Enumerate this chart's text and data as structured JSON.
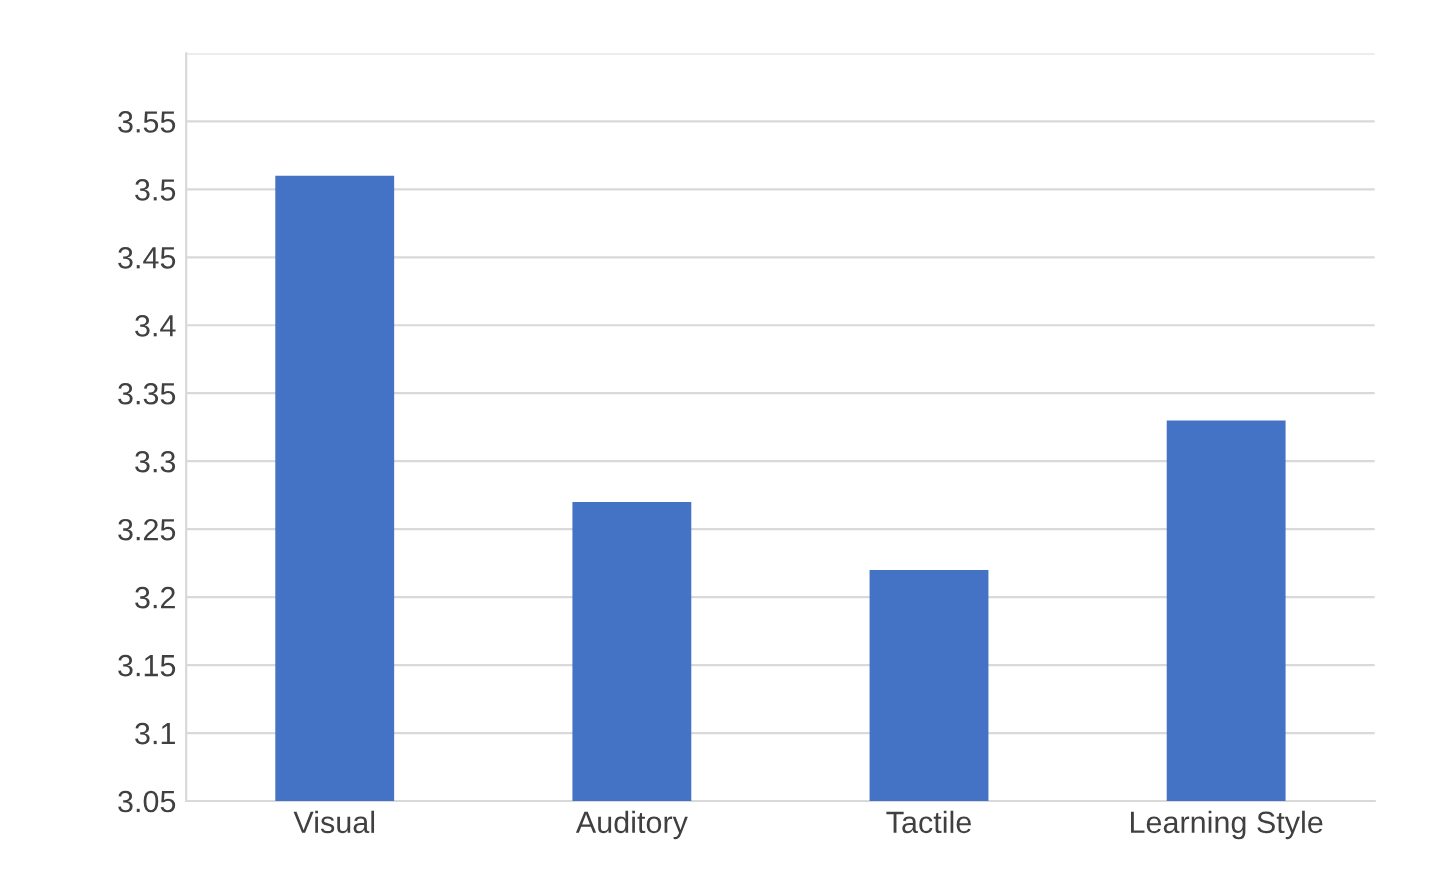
{
  "chart_data": {
    "type": "bar",
    "categories": [
      "Visual",
      "Auditory",
      "Tactile",
      "Learning Style"
    ],
    "values": [
      3.51,
      3.27,
      3.22,
      3.33
    ],
    "color": "#4472c4",
    "ylim": [
      3.05,
      3.6
    ],
    "yticks": [
      3.05,
      3.1,
      3.15,
      3.2,
      3.25,
      3.3,
      3.35,
      3.4,
      3.45,
      3.5,
      3.55,
      {
        "value": 3.6,
        "label": null
      }
    ],
    "grid": "y"
  }
}
